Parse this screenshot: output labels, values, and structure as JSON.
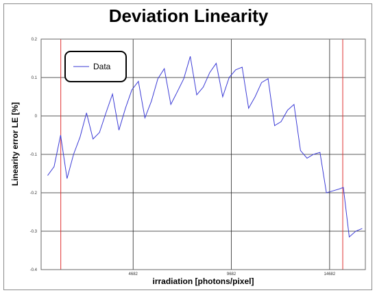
{
  "chart_data": {
    "type": "line",
    "title": "Deviation Linearity",
    "xlabel": "irradiation [photons/pixel]",
    "ylabel": "Linearity error LE [%]",
    "xlim": [
      0,
      16500
    ],
    "ylim": [
      -0.4,
      0.2
    ],
    "xticks": [
      4682,
      9682,
      14682
    ],
    "yticks": [
      -0.4,
      -0.3,
      -0.2,
      -0.1,
      0,
      0.1,
      0.2
    ],
    "ytick_labels": [
      "-0.4",
      "-0.3",
      "-0.2",
      "-0.1",
      "0",
      "0.1",
      "0.2"
    ],
    "grid": true,
    "legend": {
      "position": "top-left",
      "entries": [
        "Data"
      ]
    },
    "vertical_markers": [
      1000,
      15350
    ],
    "series": [
      {
        "name": "Data",
        "color": "#3b3bd6",
        "points": [
          [
            330,
            -0.155
          ],
          [
            660,
            -0.132
          ],
          [
            990,
            -0.05
          ],
          [
            1320,
            -0.163
          ],
          [
            1650,
            -0.1
          ],
          [
            1980,
            -0.055
          ],
          [
            2310,
            0.008
          ],
          [
            2640,
            -0.06
          ],
          [
            2970,
            -0.043
          ],
          [
            3300,
            0.008
          ],
          [
            3630,
            0.057
          ],
          [
            3960,
            -0.037
          ],
          [
            4290,
            0.02
          ],
          [
            4620,
            0.068
          ],
          [
            4950,
            0.09
          ],
          [
            5280,
            -0.005
          ],
          [
            5610,
            0.038
          ],
          [
            5940,
            0.097
          ],
          [
            6270,
            0.123
          ],
          [
            6600,
            0.03
          ],
          [
            6930,
            0.063
          ],
          [
            7260,
            0.097
          ],
          [
            7590,
            0.155
          ],
          [
            7920,
            0.055
          ],
          [
            8250,
            0.075
          ],
          [
            8580,
            0.113
          ],
          [
            8910,
            0.137
          ],
          [
            9240,
            0.05
          ],
          [
            9570,
            0.1
          ],
          [
            9900,
            0.12
          ],
          [
            10230,
            0.127
          ],
          [
            10560,
            0.02
          ],
          [
            10890,
            0.05
          ],
          [
            11220,
            0.087
          ],
          [
            11550,
            0.097
          ],
          [
            11880,
            -0.025
          ],
          [
            12210,
            -0.015
          ],
          [
            12540,
            0.015
          ],
          [
            12870,
            0.03
          ],
          [
            13200,
            -0.09
          ],
          [
            13530,
            -0.11
          ],
          [
            13860,
            -0.1
          ],
          [
            14190,
            -0.095
          ],
          [
            14520,
            -0.2
          ],
          [
            14850,
            -0.195
          ],
          [
            15180,
            -0.19
          ],
          [
            15380,
            -0.186
          ],
          [
            15680,
            -0.315
          ],
          [
            16010,
            -0.3
          ],
          [
            16340,
            -0.293
          ]
        ]
      }
    ]
  }
}
